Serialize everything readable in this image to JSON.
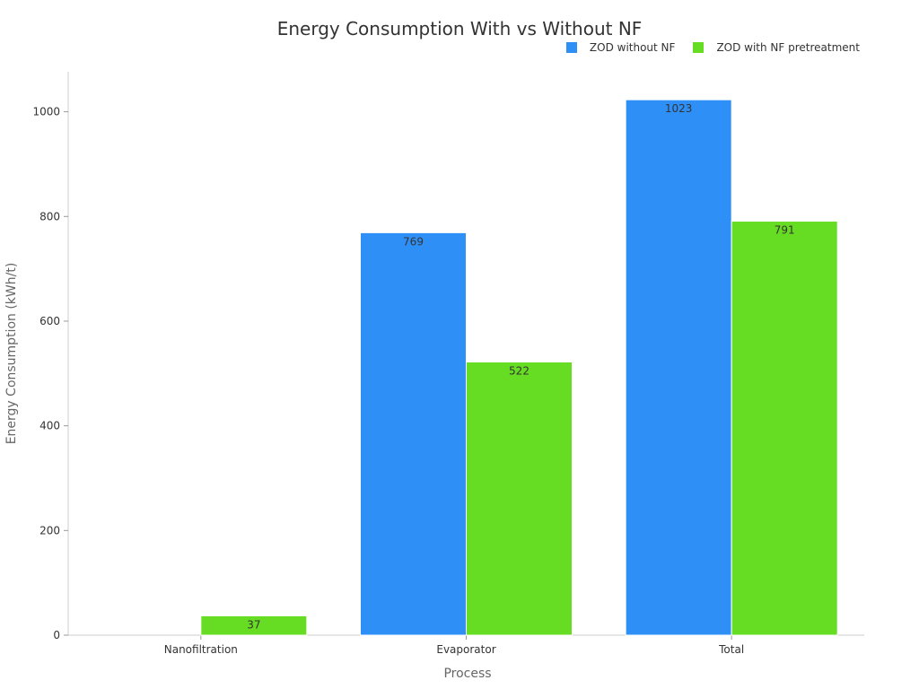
{
  "chart_data": {
    "type": "bar",
    "title": "Energy Consumption With vs Without NF",
    "xlabel": "Process",
    "ylabel": "Energy Consumption (kWh/t)",
    "categories": [
      "Nanofiltration",
      "Evaporator",
      "Total"
    ],
    "series": [
      {
        "name": "ZOD without NF",
        "color": "#2e90f7",
        "values": [
          0,
          769,
          1023
        ],
        "labels": [
          "",
          "769",
          "1023"
        ]
      },
      {
        "name": "ZOD with NF pretreatment",
        "color": "#66dd22",
        "values": [
          37,
          522,
          791
        ],
        "labels": [
          "37",
          "522",
          "791"
        ]
      }
    ],
    "ylim": [
      0,
      1075
    ],
    "yticks": [
      0,
      200,
      400,
      600,
      800,
      1000
    ],
    "grid": false,
    "legend_position": "top-right"
  }
}
